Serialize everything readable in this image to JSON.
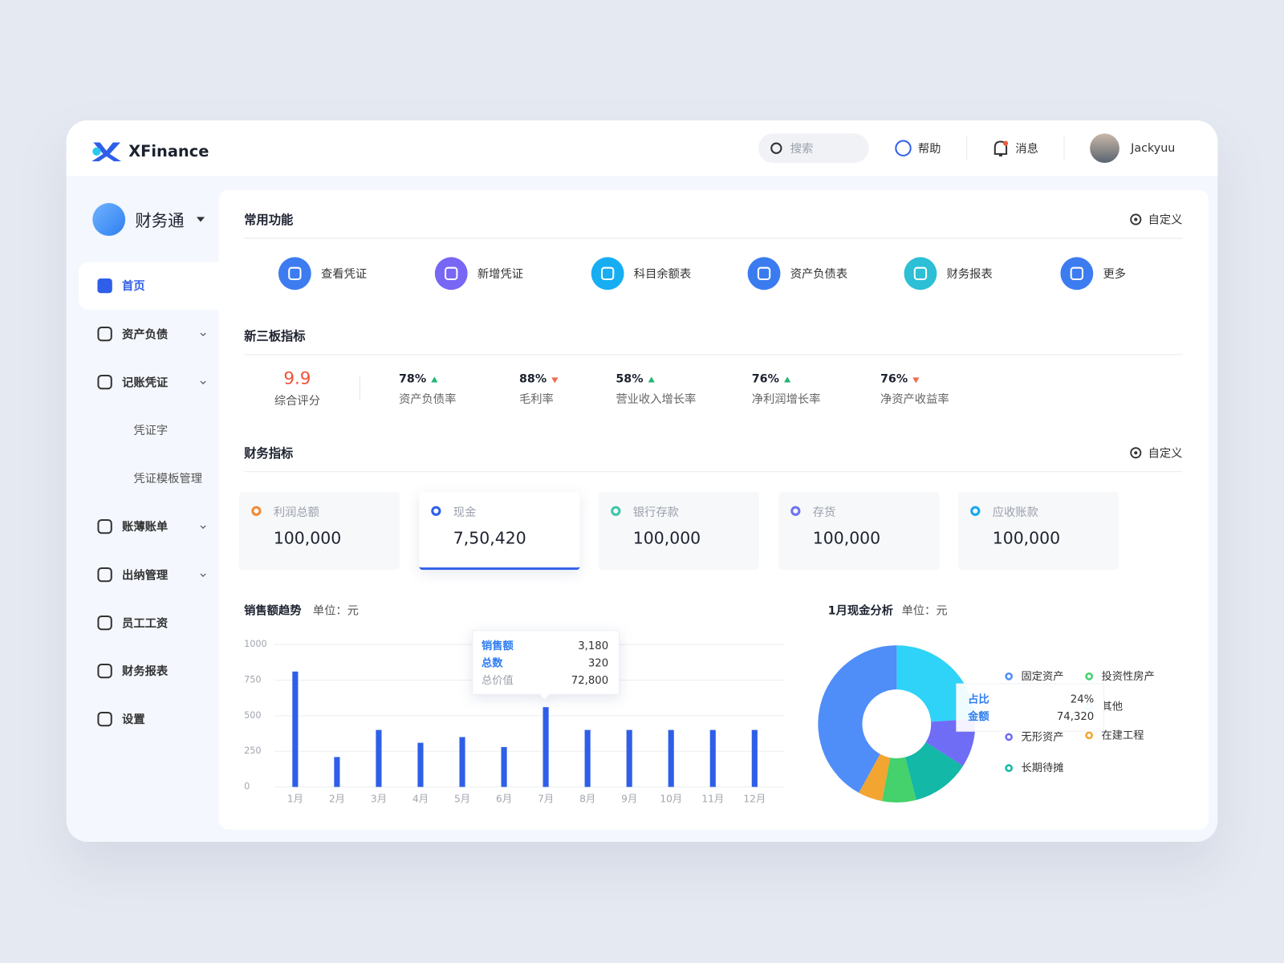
{
  "header": {
    "brand": "XFinance",
    "search": "搜索",
    "help": "帮助",
    "messages": "消息",
    "user": "Jackyuu"
  },
  "sidebar": {
    "app": "财务通",
    "items": [
      {
        "label": "首页",
        "active": true
      },
      {
        "label": "资产负债",
        "expandable": true
      },
      {
        "label": "记账凭证",
        "expandable": true
      },
      {
        "label": "凭证字",
        "sub": true
      },
      {
        "label": "凭证模板管理",
        "sub": true
      },
      {
        "label": "账薄账单",
        "expandable": true
      },
      {
        "label": "出纳管理",
        "expandable": true
      },
      {
        "label": "员工工资"
      },
      {
        "label": "财务报表"
      },
      {
        "label": "设置"
      }
    ]
  },
  "shortcuts": {
    "title": "常用功能",
    "action": "自定义",
    "items": [
      {
        "label": "查看凭证",
        "color": "#3d7cf0"
      },
      {
        "label": "新增凭证",
        "color": "#7866f4"
      },
      {
        "label": "科目余额表",
        "color": "#17adf2"
      },
      {
        "label": "资产负债表",
        "color": "#3a7cf0"
      },
      {
        "label": "财务报表",
        "color": "#2cbfd6"
      },
      {
        "label": "更多",
        "color": "#3d7cf0"
      }
    ]
  },
  "indicators": {
    "title": "新三板指标",
    "score": {
      "value": 9.9,
      "label": "综合评分"
    },
    "items": [
      {
        "value": "78%",
        "label": "资产负债率",
        "trend": "up"
      },
      {
        "value": "88%",
        "label": "毛利率",
        "trend": "down"
      },
      {
        "value": "58%",
        "label": "营业收入增长率",
        "trend": "up"
      },
      {
        "value": "76%",
        "label": "净利润增长率",
        "trend": "up"
      },
      {
        "value": "76%",
        "label": "净资产收益率",
        "trend": "down"
      }
    ]
  },
  "finance": {
    "title": "财务指标",
    "action": "自定义",
    "active": 1,
    "cards": [
      {
        "label": "利润总额",
        "value": "100,000",
        "color": "#f28a30"
      },
      {
        "label": "现金",
        "value": "7,50,420",
        "color": "#2f5fe8"
      },
      {
        "label": "银行存款",
        "value": "100,000",
        "color": "#3cc7a6"
      },
      {
        "label": "存货",
        "value": "100,000",
        "color": "#6d73f0"
      },
      {
        "label": "应收账款",
        "value": "100,000",
        "color": "#17a6f0"
      }
    ]
  },
  "sales_chart": {
    "type": "bar",
    "title": "销售额趋势",
    "unit": "单位：元",
    "categories": [
      "1月",
      "2月",
      "3月",
      "4月",
      "5月",
      "6月",
      "7月",
      "8月",
      "9月",
      "10月",
      "11月",
      "12月"
    ],
    "values": [
      810,
      210,
      400,
      310,
      350,
      280,
      560,
      400,
      400,
      400,
      400,
      400
    ],
    "color": "#2f5fe8",
    "ylim": [
      0,
      1000
    ],
    "yticks": [
      0,
      250,
      500,
      750,
      1000
    ],
    "grid": true,
    "tooltip": {
      "labels": [
        "销售额",
        "总数",
        "总价值"
      ],
      "values": [
        "3,180",
        "320",
        "72,800"
      ]
    }
  },
  "cash_chart": {
    "type": "pie",
    "title": "1月现金分析",
    "unit": "单位：元",
    "categories": [
      "其他",
      "无形资产",
      "长期待摊",
      "投资性房产",
      "在建工程",
      "固定资产"
    ],
    "values": [
      24,
      10,
      12,
      7,
      5,
      42
    ],
    "colors": [
      "#2ed3f7",
      "#6f6cf6",
      "#14b8a6",
      "#45d16b",
      "#f2a531",
      "#4f8ef8"
    ],
    "tooltip": {
      "labels": [
        "占比",
        "金额"
      ],
      "values": [
        "24%",
        "74,320"
      ]
    }
  }
}
